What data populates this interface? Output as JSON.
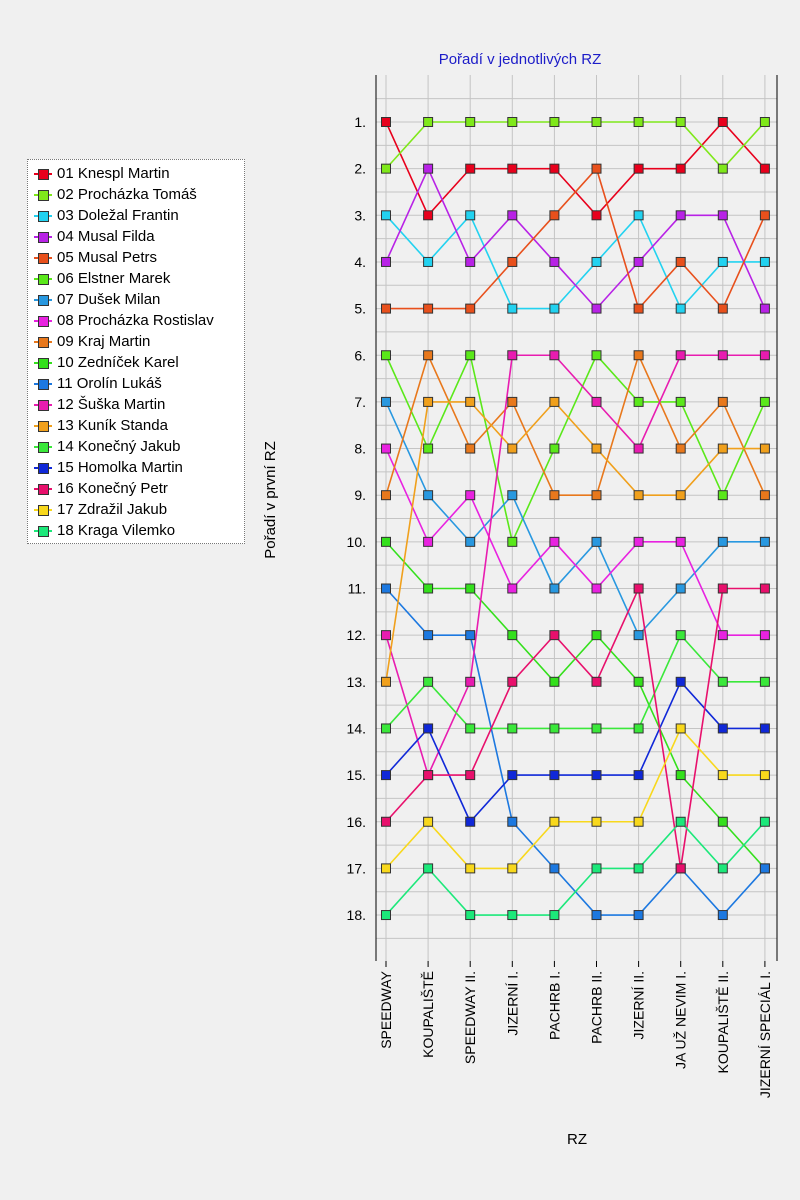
{
  "chart_data": {
    "type": "line",
    "title": "Pořadí v jednotlivých RZ",
    "xlabel": "RZ",
    "ylabel": "Pořadí v první RZ",
    "ytick_suffix": ".",
    "ylim": [
      1,
      18
    ],
    "y_inverted": true,
    "grid": true,
    "legend_position": "left",
    "categories": [
      "SPEEDWAY",
      "KOUPALIŠTĚ",
      "SPEEDWAY II.",
      "JIZERNÍ I.",
      "PACHRB I.",
      "PACHRB II.",
      "JIZERNÍ II.",
      "JA UŽ NEVIM I.",
      "KOUPALIŠTĚ II.",
      "JIZERNÍ SPECIÁL I."
    ],
    "series": [
      {
        "name": "01 Knespl Martin",
        "color": "#e8001c",
        "values": [
          1,
          3,
          2,
          2,
          2,
          3,
          2,
          2,
          1,
          2
        ]
      },
      {
        "name": "02 Procházka Tomáš",
        "color": "#7fe81a",
        "values": [
          2,
          1,
          1,
          1,
          1,
          1,
          1,
          1,
          2,
          1
        ]
      },
      {
        "name": "03 Doležal Frantin",
        "color": "#22d2f0",
        "values": [
          3,
          4,
          3,
          5,
          5,
          4,
          3,
          5,
          4,
          4
        ]
      },
      {
        "name": "04 Musal Filda",
        "color": "#b822e6",
        "values": [
          4,
          2,
          4,
          3,
          4,
          5,
          4,
          3,
          3,
          5
        ]
      },
      {
        "name": "05 Musal Petrs",
        "color": "#e8501c",
        "values": [
          5,
          5,
          5,
          4,
          3,
          2,
          5,
          4,
          5,
          3
        ]
      },
      {
        "name": "06 Elstner Marek",
        "color": "#5ae81a",
        "values": [
          6,
          8,
          6,
          10,
          8,
          6,
          7,
          7,
          9,
          7
        ]
      },
      {
        "name": "07 Dušek Milan",
        "color": "#2898e0",
        "values": [
          7,
          9,
          10,
          9,
          11,
          10,
          12,
          11,
          10,
          10
        ]
      },
      {
        "name": "08 Procházka Rostislav",
        "color": "#e822e0",
        "values": [
          8,
          10,
          9,
          11,
          10,
          11,
          10,
          10,
          12,
          12
        ]
      },
      {
        "name": "09 Kraj Martin",
        "color": "#e8781c",
        "values": [
          9,
          6,
          8,
          7,
          9,
          9,
          6,
          8,
          7,
          9
        ]
      },
      {
        "name": "10 Zedníček Karel",
        "color": "#34e01c",
        "values": [
          10,
          11,
          11,
          12,
          13,
          12,
          13,
          15,
          16,
          17
        ]
      },
      {
        "name": "11 Orolín Lukáš",
        "color": "#1c78e0",
        "values": [
          11,
          12,
          12,
          16,
          17,
          18,
          18,
          17,
          18,
          17
        ]
      },
      {
        "name": "12 Šuška Martin",
        "color": "#e81cb0",
        "values": [
          12,
          15,
          13,
          6,
          6,
          7,
          8,
          6,
          6,
          6
        ]
      },
      {
        "name": "13 Kuník Standa",
        "color": "#f0a01c",
        "values": [
          13,
          7,
          7,
          8,
          7,
          8,
          9,
          9,
          8,
          8
        ]
      },
      {
        "name": "14 Konečný Jakub",
        "color": "#3ae83a",
        "values": [
          14,
          13,
          14,
          14,
          14,
          14,
          14,
          12,
          13,
          13
        ]
      },
      {
        "name": "15 Homolka Martin",
        "color": "#1028d8",
        "values": [
          15,
          14,
          16,
          15,
          15,
          15,
          15,
          13,
          14,
          14
        ]
      },
      {
        "name": "16 Konečný Petr",
        "color": "#e8106c",
        "values": [
          16,
          15,
          15,
          13,
          12,
          13,
          11,
          17,
          11,
          11
        ]
      },
      {
        "name": "17 Zdražil Jakub",
        "color": "#f8d81c",
        "values": [
          17,
          16,
          17,
          17,
          16,
          16,
          16,
          14,
          15,
          15
        ]
      },
      {
        "name": "18 Kraga Vilemko",
        "color": "#1ce87a",
        "values": [
          18,
          17,
          18,
          18,
          18,
          17,
          17,
          16,
          17,
          16
        ]
      }
    ]
  }
}
